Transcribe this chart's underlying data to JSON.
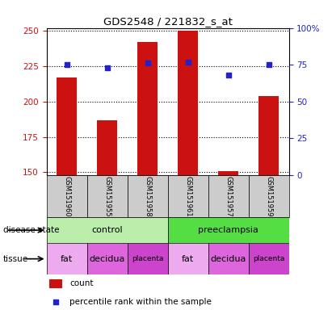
{
  "title": "GDS2548 / 221832_s_at",
  "samples": [
    "GSM151960",
    "GSM151955",
    "GSM151958",
    "GSM151961",
    "GSM151957",
    "GSM151959"
  ],
  "counts": [
    217,
    187,
    242,
    250,
    151,
    204
  ],
  "percentiles": [
    75,
    73,
    76,
    77,
    68,
    75
  ],
  "ylim_left": [
    148,
    252
  ],
  "ylim_right": [
    0,
    100
  ],
  "yticks_left": [
    150,
    175,
    200,
    225,
    250
  ],
  "yticks_right": [
    0,
    25,
    50,
    75,
    100
  ],
  "bar_color": "#cc1111",
  "dot_color": "#2222cc",
  "bar_bottom": 148,
  "disease_state_groups": [
    {
      "label": "control",
      "start": 0,
      "end": 3,
      "color": "#bbeeaa"
    },
    {
      "label": "preeclampsia",
      "start": 3,
      "end": 6,
      "color": "#55dd44"
    }
  ],
  "tissue_groups": [
    {
      "label": "fat",
      "start": 0,
      "end": 1,
      "color": "#eeaaee"
    },
    {
      "label": "decidua",
      "start": 1,
      "end": 2,
      "color": "#dd66dd"
    },
    {
      "label": "placenta",
      "start": 2,
      "end": 3,
      "color": "#cc44cc"
    },
    {
      "label": "fat",
      "start": 3,
      "end": 4,
      "color": "#eeaaee"
    },
    {
      "label": "decidua",
      "start": 4,
      "end": 5,
      "color": "#dd66dd"
    },
    {
      "label": "placenta",
      "start": 5,
      "end": 6,
      "color": "#cc44cc"
    }
  ],
  "legend_count_color": "#cc1111",
  "legend_dot_color": "#2222cc",
  "left_tick_color": "#cc1111",
  "right_tick_color": "#2222cc",
  "sample_bg": "#cccccc",
  "bar_width": 0.5
}
